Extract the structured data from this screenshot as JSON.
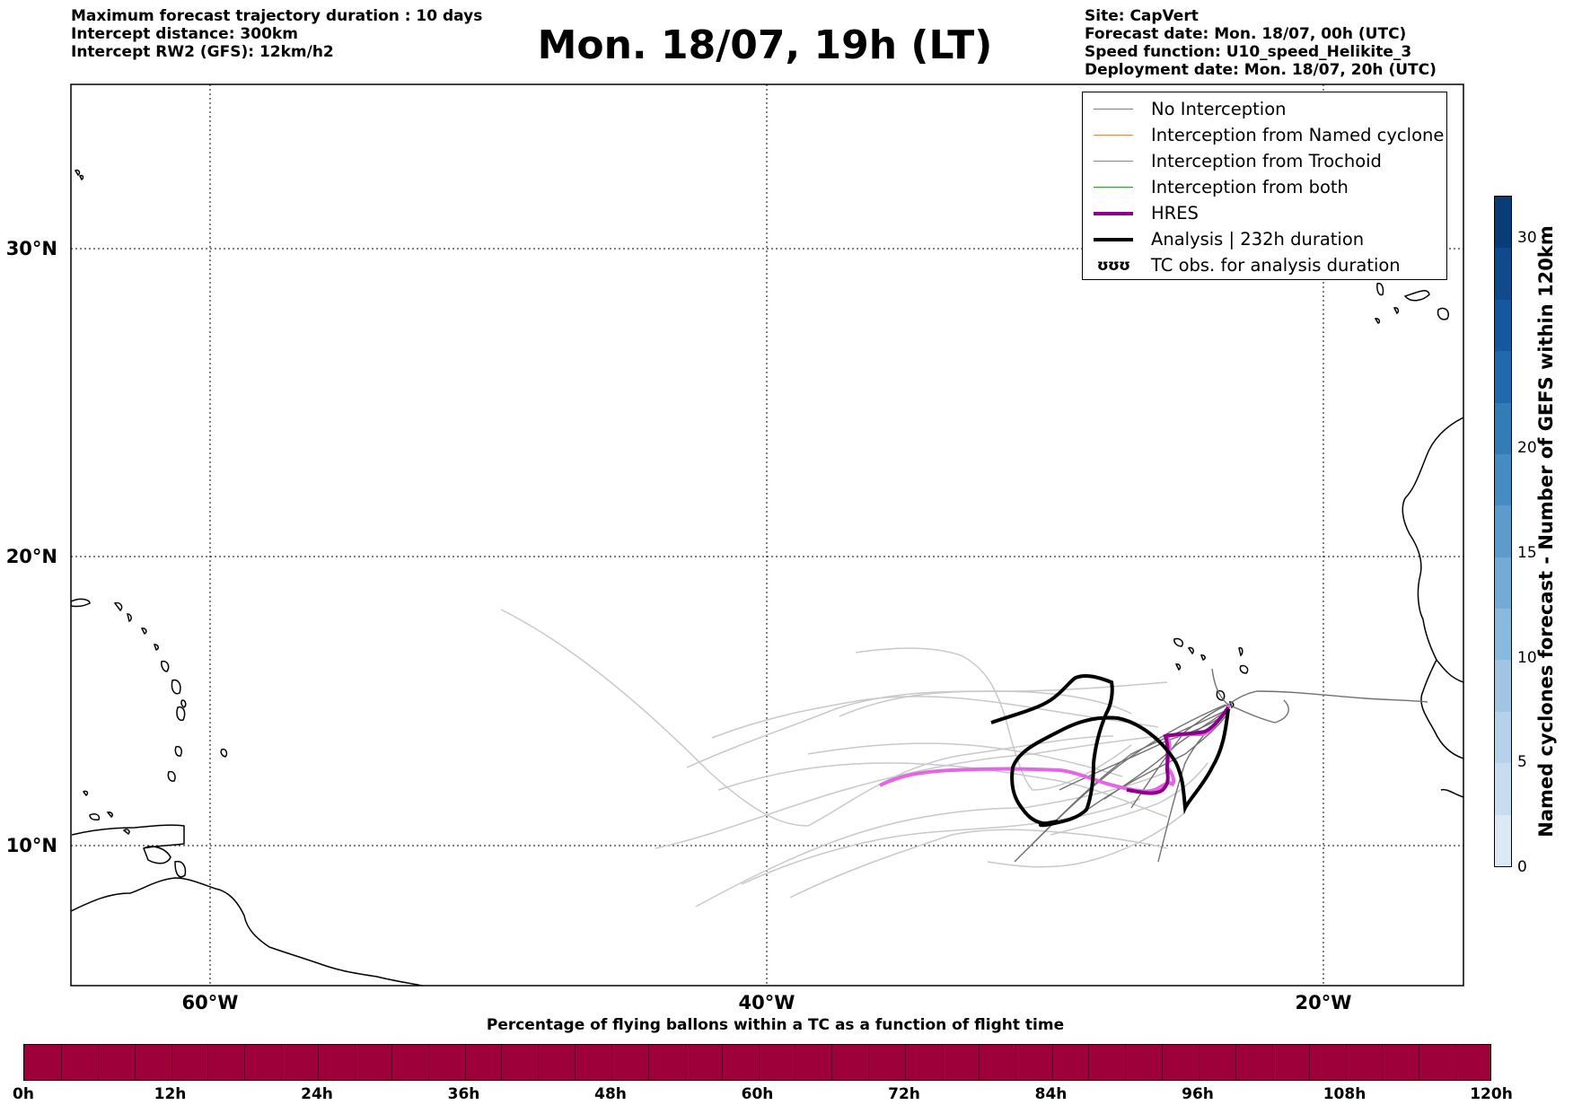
{
  "header": {
    "left_lines": [
      "Maximum forecast trajectory duration : 10 days",
      "Intercept distance: 300km",
      "Intercept RW2 (GFS):  12km/h2"
    ],
    "title": "Mon. 18/07, 19h (LT)",
    "right_lines": [
      "Site: CapVert",
      "Forecast date: Mon. 18/07, 00h (UTC)",
      "Speed function: U10_speed_Helikite_3",
      "Deployment date: Mon. 18/07, 20h (UTC)"
    ]
  },
  "map": {
    "lat_ticks": [
      "30°N",
      "20°N",
      "10°N"
    ],
    "lon_ticks": [
      "60°W",
      "40°W",
      "20°W"
    ],
    "extent": {
      "lon_min": -65,
      "lon_max": -15,
      "lat_min": 5.4,
      "lat_max": 34.6
    },
    "gridlines": true
  },
  "legend": {
    "items": [
      {
        "label": "No Interception",
        "color": "#808080",
        "kind": "thin"
      },
      {
        "label": "Interception from Named cyclone",
        "color": "#ff7f50",
        "kind": "thin"
      },
      {
        "label": "Interception from Trochoid",
        "color": "#9b8a3a",
        "kind": "thin"
      },
      {
        "label": "Interception from both",
        "color": "#2ca02c",
        "kind": "thin"
      },
      {
        "label": "HRES",
        "color": "#8b008b",
        "kind": "thick"
      },
      {
        "label": "Analysis | 232h duration",
        "color": "#000000",
        "kind": "thicker"
      },
      {
        "label": "TC obs. for analysis duration",
        "color": "#000000",
        "kind": "glyph",
        "glyph": "ʊʊʊ"
      }
    ]
  },
  "right_colorbar": {
    "label": "Named cyclones forecast - Number of GEFS within 120km",
    "ticks": [
      "0",
      "5",
      "10",
      "15",
      "20",
      "30"
    ],
    "min": 0,
    "max": 32,
    "colors": [
      "#dbe8f5",
      "#c8dcf0",
      "#b5d2ea",
      "#a0c6e3",
      "#89b9dc",
      "#72abd5",
      "#5b9ccc",
      "#458cc2",
      "#327cb8",
      "#2169ad",
      "#14589f",
      "#0e4a8c",
      "#0a3d78"
    ]
  },
  "bottom_colorbar": {
    "label": "Percentage of flying ballons within a TC as a function of flight time",
    "ticks": [
      "0h",
      "12h",
      "24h",
      "36h",
      "48h",
      "60h",
      "72h",
      "84h",
      "96h",
      "108h",
      "120h"
    ],
    "color": "#9e0039"
  }
}
